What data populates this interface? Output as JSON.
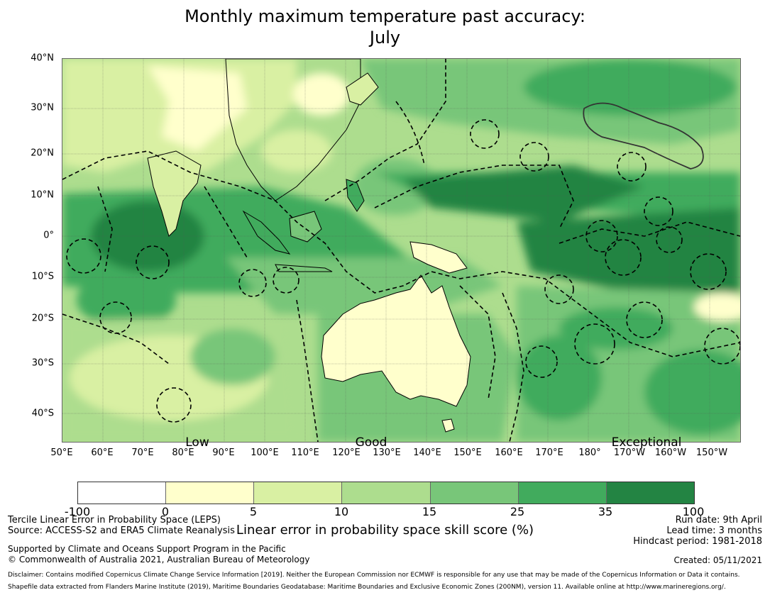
{
  "title": {
    "line1": "Monthly maximum temperature past accuracy:",
    "line2": "July"
  },
  "map": {
    "lat_labels": [
      "40°N",
      "30°N",
      "20°N",
      "10°N",
      "0°",
      "10°S",
      "20°S",
      "30°S",
      "40°S"
    ],
    "lon_labels": [
      "50°E",
      "60°E",
      "70°E",
      "80°E",
      "90°E",
      "100°E",
      "110°E",
      "120°E",
      "130°E",
      "140°E",
      "150°E",
      "160°E",
      "170°E",
      "180°",
      "170°W",
      "160°W",
      "150°W"
    ],
    "skill_labels": [
      "Low",
      "Good",
      "Exceptional"
    ]
  },
  "colorbar": {
    "ticks": [
      "-100",
      "0",
      "5",
      "10",
      "15",
      "25",
      "35",
      "100"
    ],
    "colors": [
      "#ffffff",
      "#ffffcc",
      "#d9f0a3",
      "#addd8e",
      "#78c679",
      "#41ab5d",
      "#238443"
    ],
    "label": "Linear error in probability space skill score (%)"
  },
  "info": {
    "method": "Tercile Linear Error in Probability Space (LEPS)",
    "source": "Source: ACCESS-S2 and ERA5 Climate Reanalysis",
    "run_date": "Run date: 9th April",
    "lead_time": "Lead time: 3 months",
    "hindcast": "Hindcast period: 1981-2018",
    "support": "Supported by Climate and Oceans Support Program in the Pacific",
    "copyright": "© Commonwealth of Australia 2021, Australian Bureau of Meteorology",
    "created": "Created: 05/11/2021",
    "disclaimer": "Disclaimer: Contains modified Copernicus Climate Change Service Information [2019]. Neither the European Commission nor ECMWF is responsible for any use that may be made of the Copernicus Information or Data it contains.",
    "shapefile": "Shapefile data extracted from Flanders Marine Institute (2019), Maritime Boundaries Geodatabase: Maritime Boundaries and Exclusive Economic Zones (200NM), version 11. Available online at http://www.marineregions.org/."
  }
}
